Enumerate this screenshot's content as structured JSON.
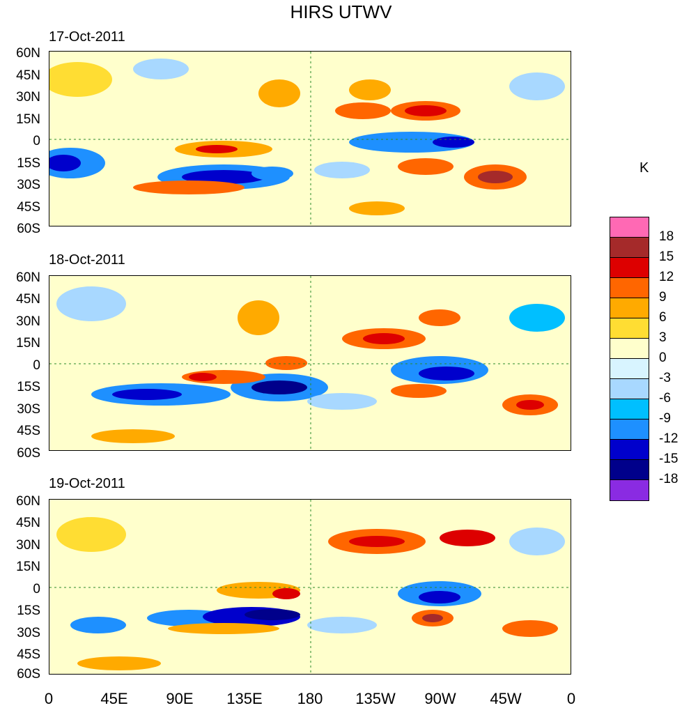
{
  "title": "HIRS UTWV",
  "panels": [
    {
      "date": "17-Oct-2011"
    },
    {
      "date": "18-Oct-2011"
    },
    {
      "date": "19-Oct-2011"
    }
  ],
  "lat_labels": [
    "60N",
    "45N",
    "30N",
    "15N",
    "0",
    "15S",
    "30S",
    "45S",
    "60S"
  ],
  "lon_labels": [
    "0",
    "45E",
    "90E",
    "135E",
    "180",
    "135W",
    "90W",
    "45W",
    "0"
  ],
  "colorbar": {
    "unit": "K",
    "labels": [
      "18",
      "15",
      "12",
      "9",
      "6",
      "3",
      "0",
      "-3",
      "-6",
      "-9",
      "-12",
      "-15",
      "-18"
    ],
    "colors": [
      "#ff69b4",
      "#a52a2a",
      "#dd0000",
      "#ff6600",
      "#ffaa00",
      "#ffdd33",
      "#ffffcc",
      "#d8f4ff",
      "#a8d8ff",
      "#00bfff",
      "#1e90ff",
      "#0000cc",
      "#00008b",
      "#8a2be2"
    ]
  }
}
